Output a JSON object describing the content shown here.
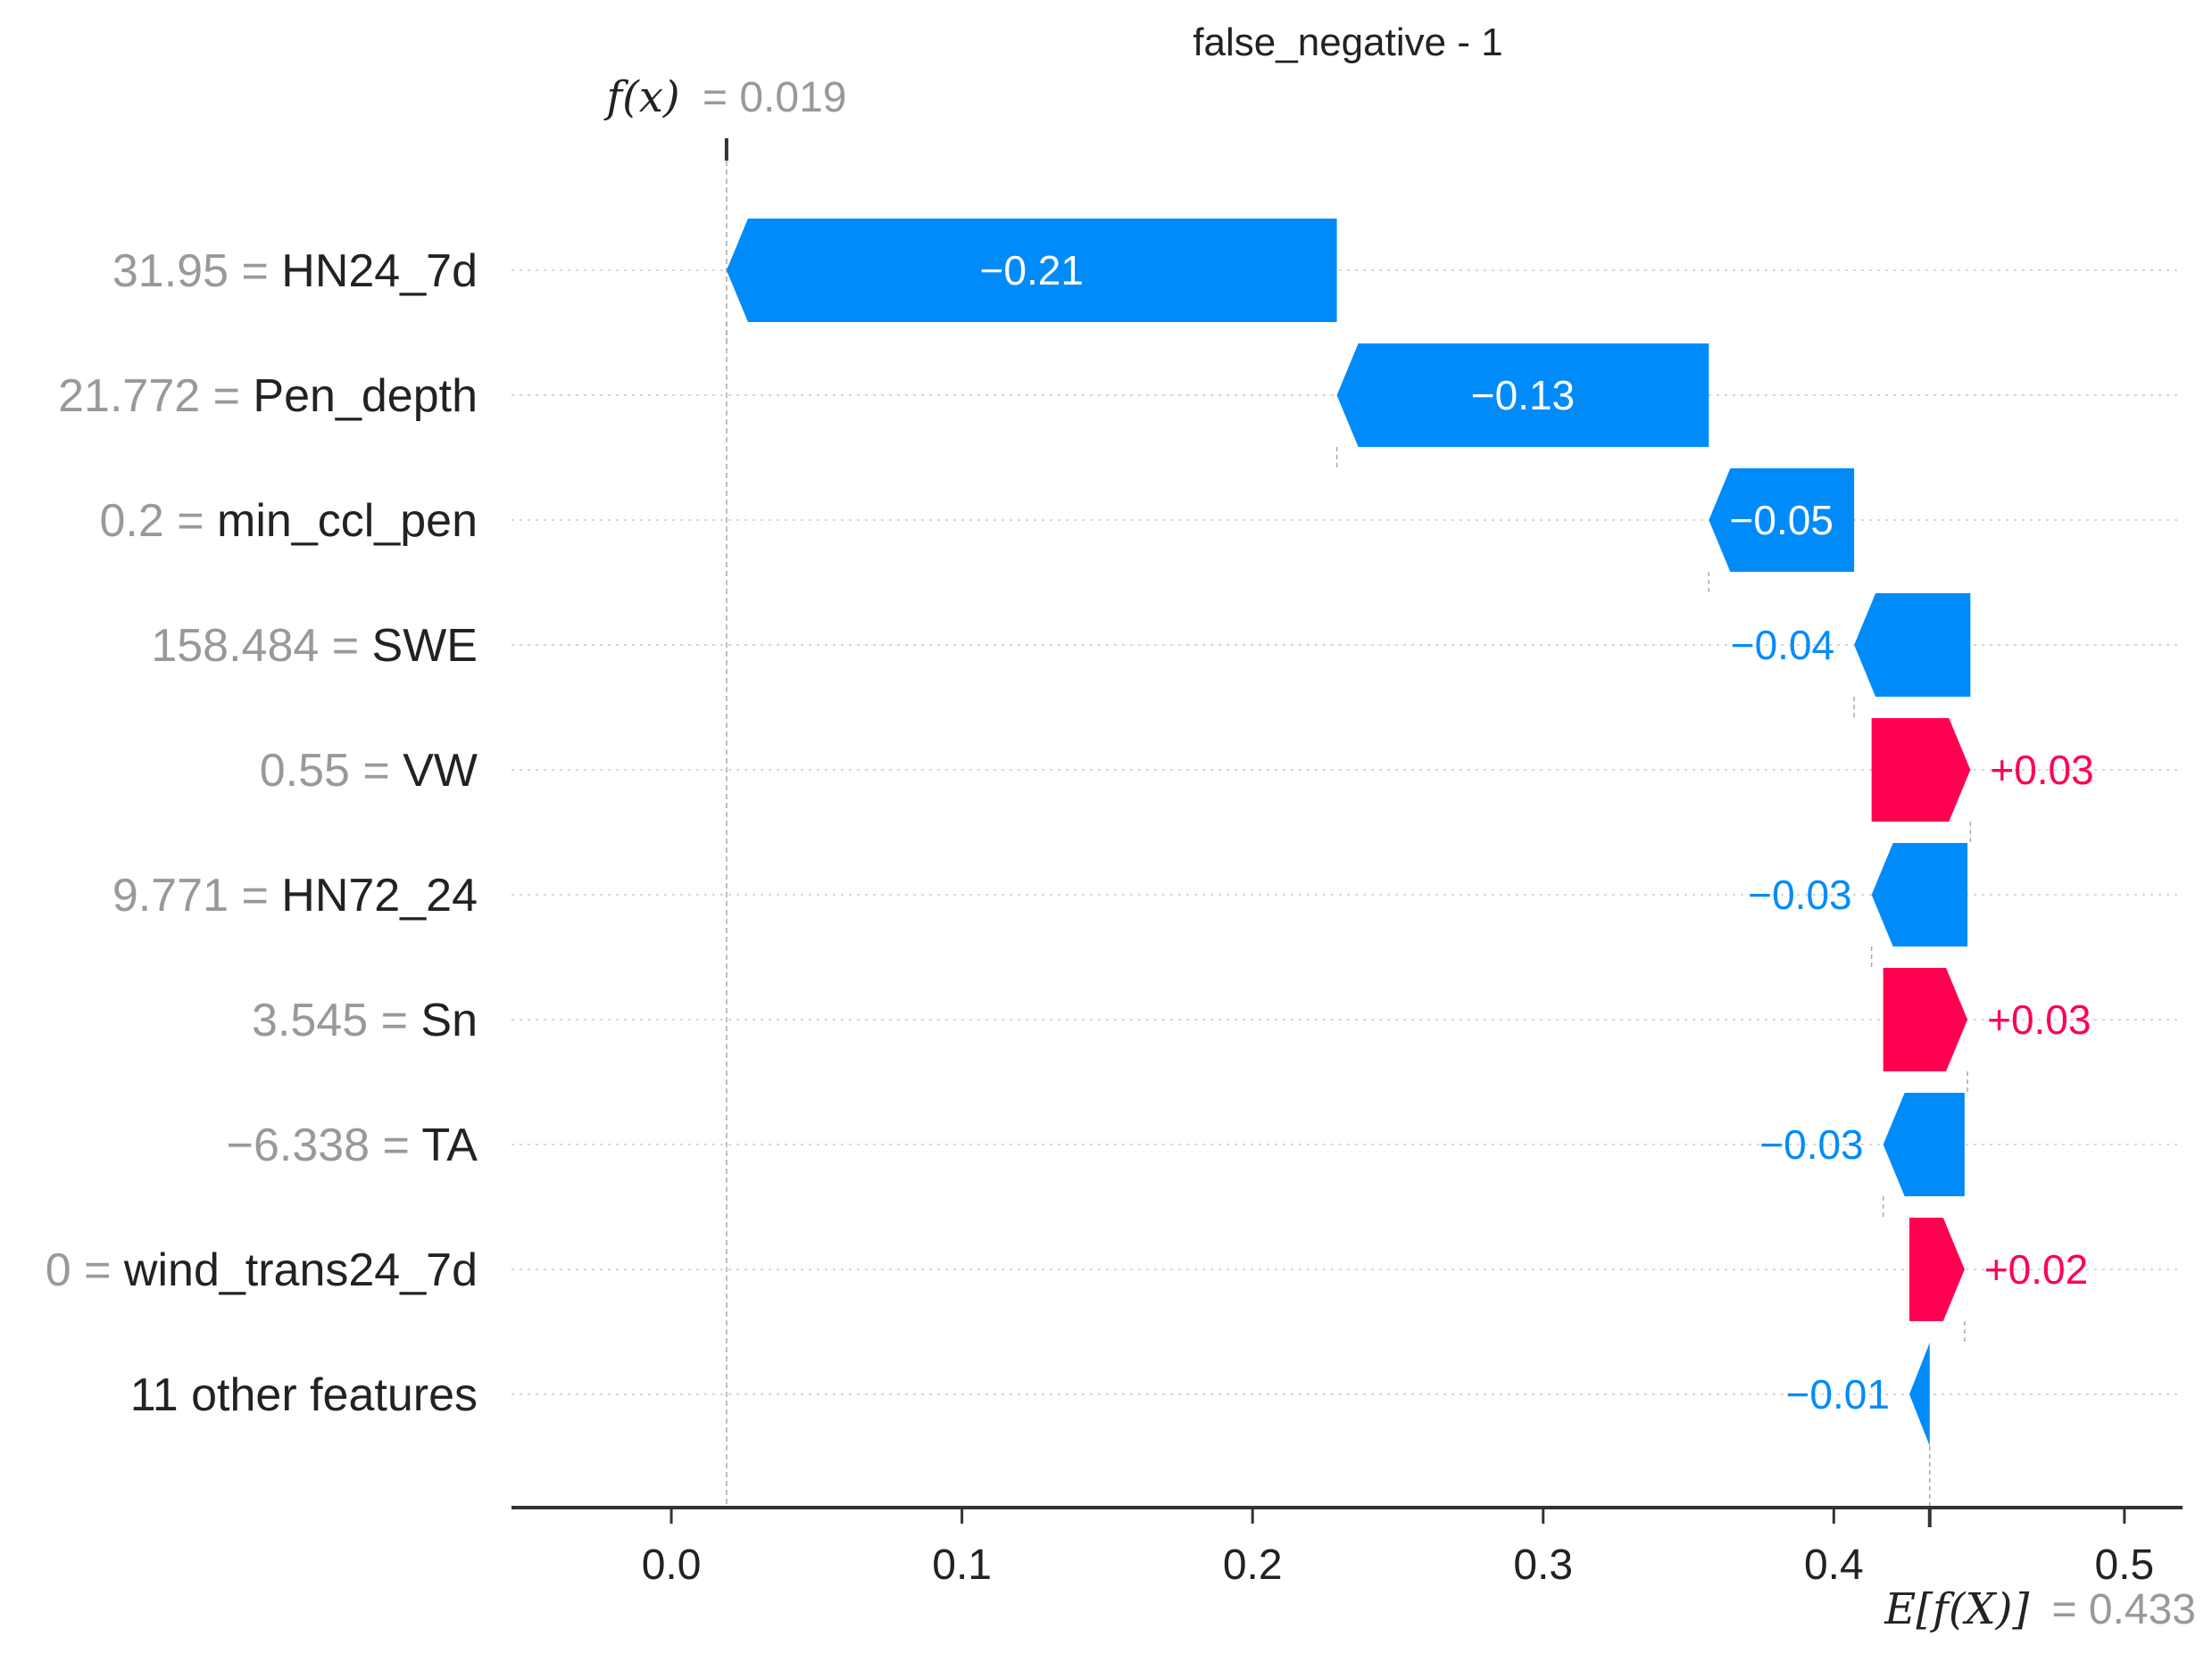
{
  "chart_data": {
    "type": "waterfall",
    "title": "false_negative - 1",
    "fx_label": "f(x)",
    "fx_value_text": "= 0.019",
    "fx": 0.019,
    "expected_label": "E[f(X)]",
    "expected_value_text": "= 0.433",
    "expected": 0.433,
    "xlim": [
      -0.055,
      0.52
    ],
    "xticks": [
      "0.0",
      "0.1",
      "0.2",
      "0.3",
      "0.4",
      "0.5"
    ],
    "xtick_values": [
      0.0,
      0.1,
      0.2,
      0.3,
      0.4,
      0.5
    ],
    "colors": {
      "negative": "#008bfb",
      "positive": "#ff0051",
      "axis": "#333333",
      "grid": "#cccccc",
      "muted": "#999999"
    },
    "features": [
      {
        "value": "31.95",
        "name": "HN24_7d",
        "label": "−0.21",
        "start": 0.229,
        "end": 0.019
      },
      {
        "value": "21.772",
        "name": "Pen_depth",
        "label": "−0.13",
        "start": 0.357,
        "end": 0.229
      },
      {
        "value": "0.2",
        "name": "min_ccl_pen",
        "label": "−0.05",
        "start": 0.407,
        "end": 0.357
      },
      {
        "value": "158.484",
        "name": "SWE",
        "label": "−0.04",
        "start": 0.447,
        "end": 0.407
      },
      {
        "value": "0.55",
        "name": "VW",
        "label": "+0.03",
        "start": 0.413,
        "end": 0.447
      },
      {
        "value": "9.771",
        "name": "HN72_24",
        "label": "−0.03",
        "start": 0.446,
        "end": 0.413
      },
      {
        "value": "3.545",
        "name": "Sn",
        "label": "+0.03",
        "start": 0.417,
        "end": 0.446
      },
      {
        "value": "−6.338",
        "name": "TA",
        "label": "−0.03",
        "start": 0.445,
        "end": 0.417
      },
      {
        "value": "0",
        "name": "wind_trans24_7d",
        "label": "+0.02",
        "start": 0.426,
        "end": 0.445
      },
      {
        "value": "11 other features",
        "name": "",
        "label": "−0.01",
        "start": 0.433,
        "end": 0.426
      }
    ]
  }
}
